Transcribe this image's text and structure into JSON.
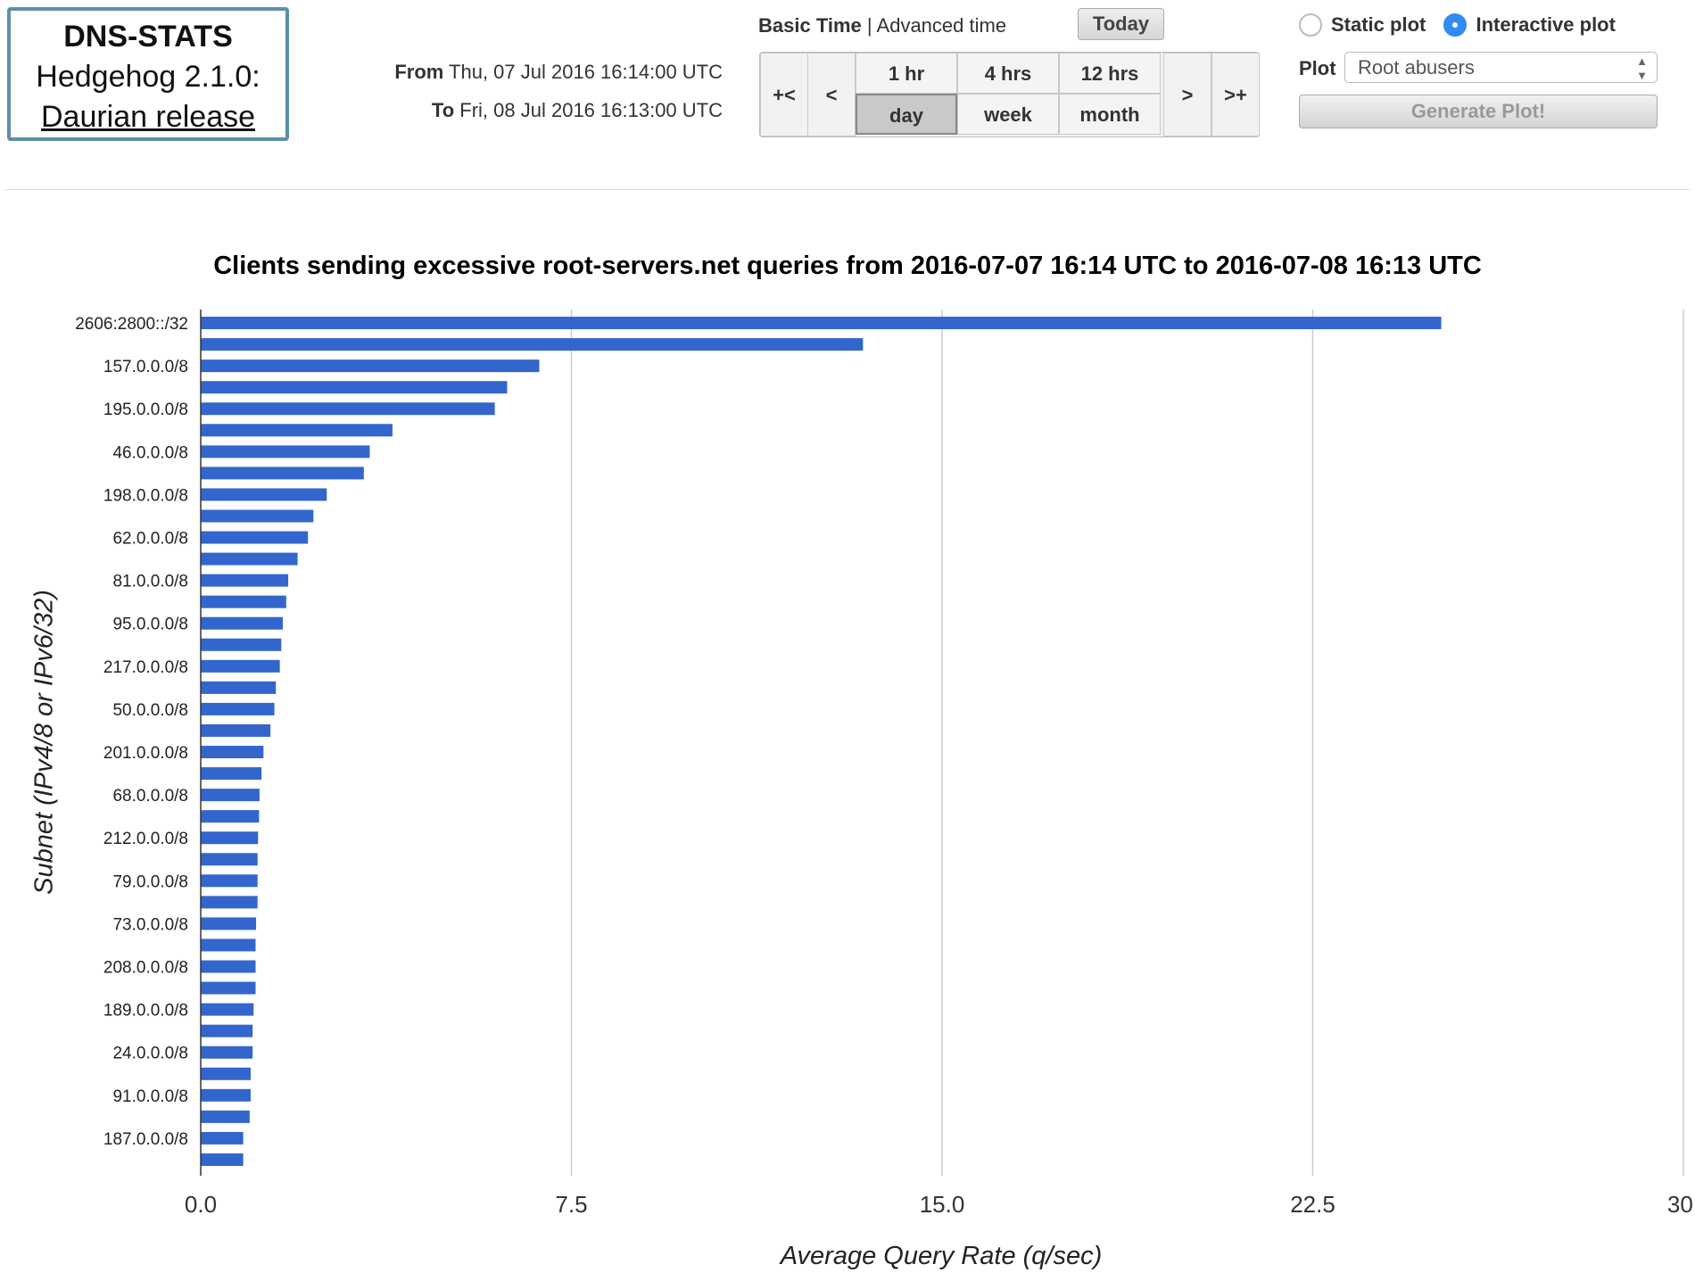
{
  "logo": {
    "title": "DNS-STATS",
    "version": "Hedgehog 2.1.0:",
    "release": "Daurian release"
  },
  "range": {
    "from_label": "From",
    "from_value": "Thu, 07 Jul 2016 16:14:00 UTC",
    "to_label": "To",
    "to_value": "Fri, 08 Jul 2016 16:13:00 UTC"
  },
  "time_mode": {
    "basic": "Basic Time",
    "separator": "|",
    "advanced": "Advanced time",
    "today": "Today"
  },
  "nav": {
    "first": "+<",
    "prev": "<",
    "next": ">",
    "last": ">+",
    "row1": [
      "1 hr",
      "4 hrs",
      "12 hrs"
    ],
    "row2": [
      "day",
      "week",
      "month"
    ],
    "active": "day"
  },
  "plot_mode": {
    "static": "Static plot",
    "interactive": "Interactive plot",
    "selected": "Interactive plot"
  },
  "plot_select": {
    "label": "Plot",
    "value": "Root abusers"
  },
  "generate": "Generate Plot!",
  "chart_data": {
    "type": "bar",
    "orientation": "horizontal",
    "title": "Clients sending excessive root-servers.net queries from 2016-07-07 16:14 UTC to 2016-07-08 16:13 UTC",
    "xlabel": "Average Query Rate (q/sec)",
    "ylabel": "Subnet (IPv4/8 or IPv6/32)",
    "xlim": [
      0,
      30
    ],
    "xticks": [
      "0.0",
      "7.5",
      "15.0",
      "22.5",
      "30."
    ],
    "grid": true,
    "bar_color": "#3366cc",
    "categories": [
      "2606:2800::/32",
      "",
      "157.0.0.0/8",
      "",
      "195.0.0.0/8",
      "",
      "46.0.0.0/8",
      "",
      "198.0.0.0/8",
      "",
      "62.0.0.0/8",
      "",
      "81.0.0.0/8",
      "",
      "95.0.0.0/8",
      "",
      "217.0.0.0/8",
      "",
      "50.0.0.0/8",
      "",
      "201.0.0.0/8",
      "",
      "68.0.0.0/8",
      "",
      "212.0.0.0/8",
      "",
      "79.0.0.0/8",
      "",
      "73.0.0.0/8",
      "",
      "208.0.0.0/8",
      "",
      "189.0.0.0/8",
      "",
      "24.0.0.0/8",
      "",
      "91.0.0.0/8",
      "",
      "187.0.0.0/8",
      ""
    ],
    "values": [
      25.1,
      13.4,
      6.85,
      6.2,
      5.95,
      3.88,
      3.42,
      3.3,
      2.55,
      2.28,
      2.17,
      1.96,
      1.77,
      1.73,
      1.66,
      1.63,
      1.6,
      1.52,
      1.49,
      1.41,
      1.27,
      1.23,
      1.19,
      1.18,
      1.16,
      1.15,
      1.15,
      1.15,
      1.12,
      1.11,
      1.11,
      1.11,
      1.07,
      1.05,
      1.05,
      1.01,
      1.01,
      0.99,
      0.86,
      0.86
    ]
  }
}
